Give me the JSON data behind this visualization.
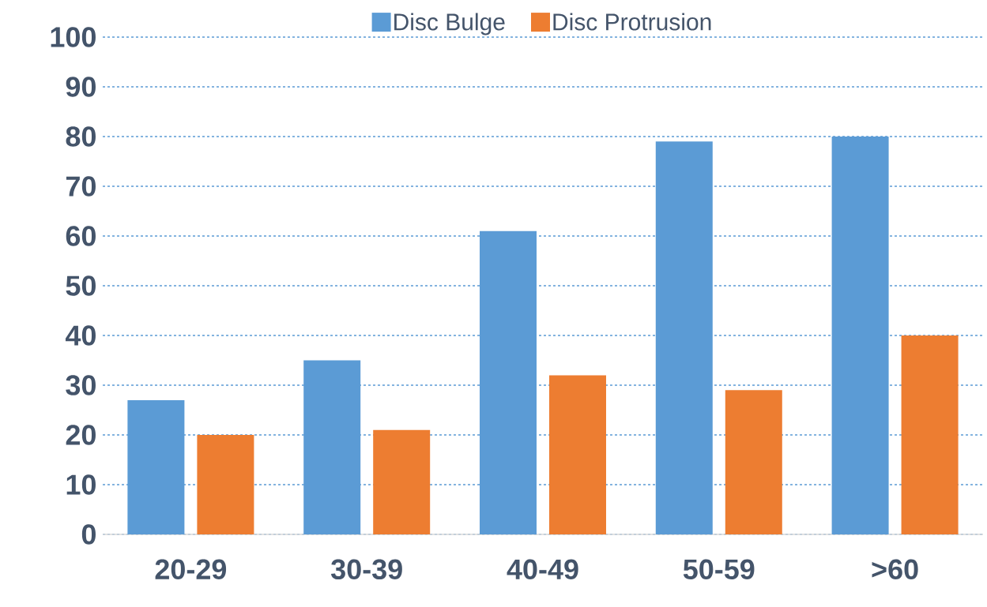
{
  "chart_data": {
    "type": "bar",
    "categories": [
      "20-29",
      "30-39",
      "40-49",
      "50-59",
      ">60"
    ],
    "series": [
      {
        "name": "Disc Bulge",
        "color": "#5b9bd5",
        "values": [
          27,
          35,
          61,
          79,
          80
        ]
      },
      {
        "name": "Disc Protrusion",
        "color": "#ed7d31",
        "values": [
          20,
          21,
          32,
          29,
          40
        ]
      }
    ],
    "ylim": [
      0,
      100
    ],
    "yticks": [
      0,
      10,
      20,
      30,
      40,
      50,
      60,
      70,
      80,
      90,
      100
    ],
    "grid": "y",
    "legend": "top"
  }
}
